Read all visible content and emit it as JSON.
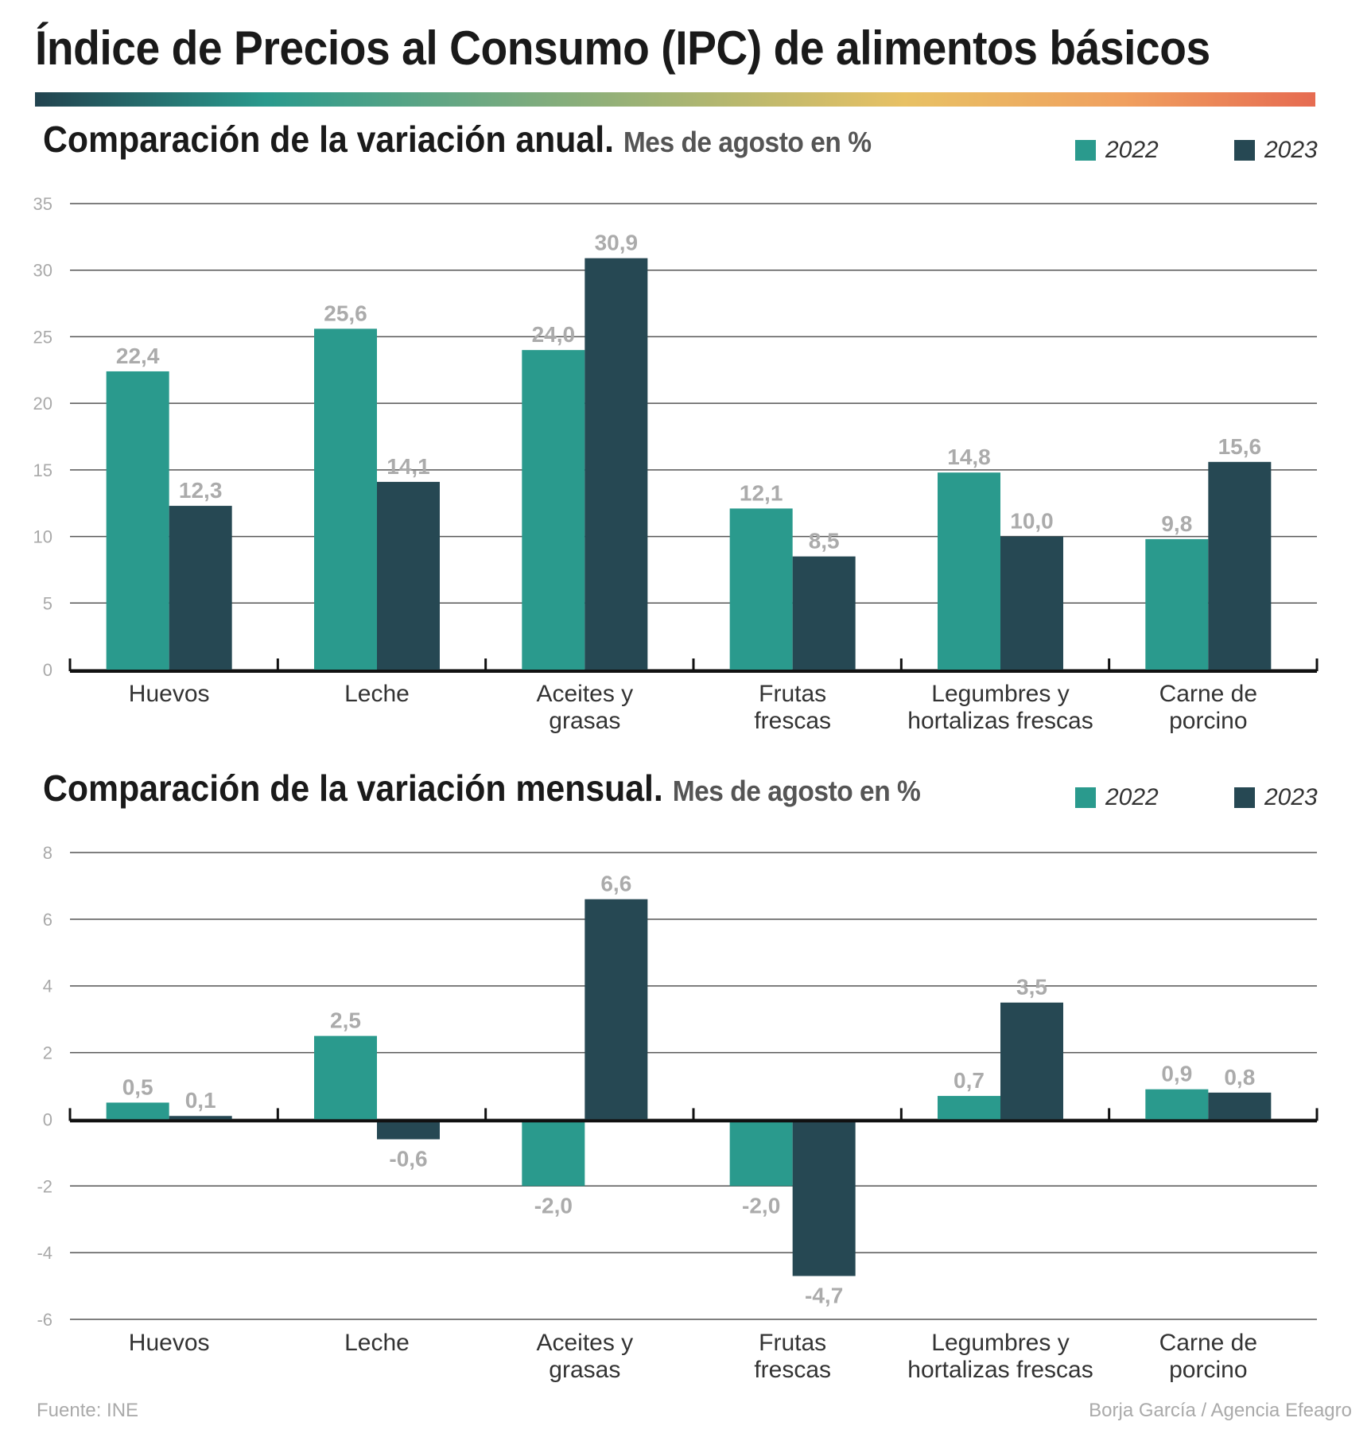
{
  "title": "Índice de Precios al Consumo (IPC) de alimentos básicos",
  "colors": {
    "series_2022": "#2a9a8d",
    "series_2023": "#264853",
    "value_label": "#ababab"
  },
  "legend": [
    {
      "label": "2022",
      "color": "#2a9a8d"
    },
    {
      "label": "2023",
      "color": "#264853"
    }
  ],
  "footer": {
    "source": "Fuente: INE",
    "credit": "Borja García / Agencia Efeagro"
  },
  "chart_data": [
    {
      "type": "bar",
      "title": "Comparación de la variación anual.",
      "subtitle": "Mes de agosto en %",
      "categories": [
        "Huevos",
        "Leche",
        "Aceites y grasas",
        "Frutas frescas",
        "Legumbres y hortalizas frescas",
        "Carne de porcino"
      ],
      "category_lines": [
        [
          "Huevos"
        ],
        [
          "Leche"
        ],
        [
          "Aceites y",
          "grasas"
        ],
        [
          "Frutas",
          "frescas"
        ],
        [
          "Legumbres y",
          "hortalizas frescas"
        ],
        [
          "Carne de",
          "porcino"
        ]
      ],
      "series": [
        {
          "name": "2022",
          "values": [
            22.4,
            25.6,
            24.0,
            12.1,
            14.8,
            9.8
          ],
          "labels": [
            "22,4",
            "25,6",
            "24,0",
            "12,1",
            "14,8",
            "9,8"
          ]
        },
        {
          "name": "2023",
          "values": [
            12.3,
            14.1,
            30.9,
            8.5,
            10.0,
            15.6
          ],
          "labels": [
            "12,3",
            "14,1",
            "30,9",
            "8,5",
            "10,0",
            "15,6"
          ]
        }
      ],
      "yticks": [
        0,
        5,
        10,
        15,
        20,
        25,
        30,
        35
      ],
      "ylim": [
        0,
        35
      ],
      "xlabel": "",
      "ylabel": "",
      "grid": true,
      "legend_position": "top-right"
    },
    {
      "type": "bar",
      "title": "Comparación de la variación mensual.",
      "subtitle": "Mes de agosto en %",
      "categories": [
        "Huevos",
        "Leche",
        "Aceites y grasas",
        "Frutas frescas",
        "Legumbres y hortalizas frescas",
        "Carne de porcino"
      ],
      "category_lines": [
        [
          "Huevos"
        ],
        [
          "Leche"
        ],
        [
          "Aceites y",
          "grasas"
        ],
        [
          "Frutas",
          "frescas"
        ],
        [
          "Legumbres y",
          "hortalizas frescas"
        ],
        [
          "Carne de",
          "porcino"
        ]
      ],
      "series": [
        {
          "name": "2022",
          "values": [
            0.5,
            2.5,
            -2.0,
            -2.0,
            0.7,
            0.9
          ],
          "labels": [
            "0,5",
            "2,5",
            "-2,0",
            "-2,0",
            "0,7",
            "0,9"
          ]
        },
        {
          "name": "2023",
          "values": [
            0.1,
            -0.6,
            6.6,
            -4.7,
            3.5,
            0.8
          ],
          "labels": [
            "0,1",
            "-0,6",
            "6,6",
            "-4,7",
            "3,5",
            "0,8"
          ]
        }
      ],
      "yticks": [
        -6,
        -4,
        -2,
        0,
        2,
        4,
        6,
        8
      ],
      "ylim": [
        -6,
        8
      ],
      "xlabel": "",
      "ylabel": "",
      "grid": true,
      "legend_position": "top-right"
    }
  ]
}
